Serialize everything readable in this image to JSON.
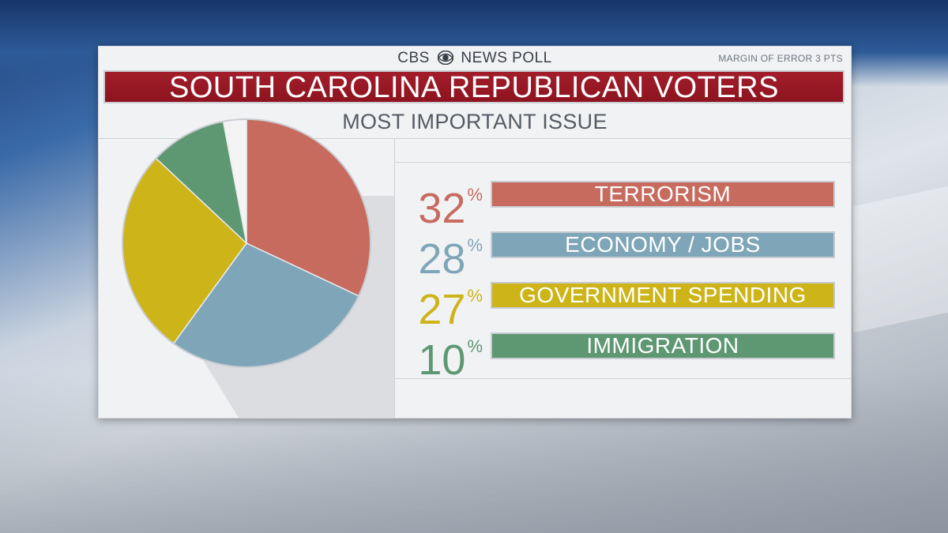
{
  "brand": {
    "left": "CBS",
    "right": "NEWS POLL"
  },
  "margin_of_error": "MARGIN OF ERROR 3 PTS",
  "title": "SOUTH CAROLINA REPUBLICAN VOTERS",
  "subtitle": "MOST IMPORTANT ISSUE",
  "colors": {
    "terrorism": "#c76b5e",
    "economy": "#7fa6b8",
    "government_spending": "#cdb418",
    "immigration": "#5e9872",
    "other": "#f4f4f4",
    "title_bar": "#9a1a26"
  },
  "chart_data": {
    "type": "pie",
    "title": "MOST IMPORTANT ISSUE",
    "slices": [
      {
        "label": "TERRORISM",
        "value": 32,
        "display": "32",
        "color": "#c76b5e"
      },
      {
        "label": "ECONOMY / JOBS",
        "value": 28,
        "display": "28",
        "color": "#7fa6b8"
      },
      {
        "label": "GOVERNMENT SPENDING",
        "value": 27,
        "display": "27",
        "color": "#cdb418"
      },
      {
        "label": "IMMIGRATION",
        "value": 10,
        "display": "10",
        "color": "#5e9872"
      },
      {
        "label": "",
        "value": 3,
        "display": "",
        "color": "#f4f4f4"
      }
    ],
    "unit": "%"
  }
}
